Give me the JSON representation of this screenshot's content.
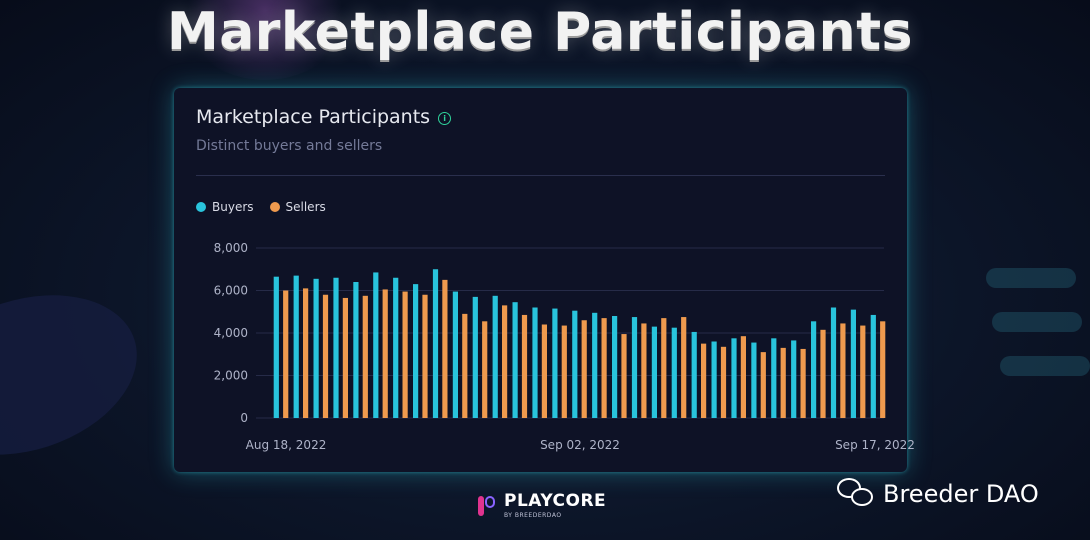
{
  "page": {
    "headline": "Marketplace Participants"
  },
  "card": {
    "title": "Marketplace Participants",
    "subtitle": "Distinct buyers and sellers",
    "info_icon": "info-icon",
    "info_glyph": "i"
  },
  "colors": {
    "buyers": "#29c4dc",
    "sellers": "#ef9a4e",
    "gridline": "#262b48",
    "axis_text": "#aeb3c8",
    "card_glow": "#32c8d7"
  },
  "chart_data": {
    "type": "bar",
    "series": [
      {
        "name": "Buyers",
        "values": [
          6650,
          6700,
          6550,
          6600,
          6400,
          6850,
          6600,
          6300,
          7000,
          5950,
          5700,
          5750,
          5450,
          5200,
          5150,
          5050,
          4950,
          4800,
          4750,
          4300,
          4250,
          4050,
          3600,
          3750,
          3550,
          3750,
          3650,
          4550,
          5200,
          5100,
          4850
        ]
      },
      {
        "name": "Sellers",
        "values": [
          6000,
          6100,
          5800,
          5650,
          5750,
          6050,
          5950,
          5800,
          6500,
          4900,
          4550,
          5300,
          4850,
          4400,
          4350,
          4600,
          4700,
          3950,
          4450,
          4700,
          4750,
          3500,
          3350,
          3850,
          3100,
          3300,
          3250,
          4150,
          4450,
          4350,
          4550
        ]
      }
    ],
    "x_start": "2022-08-18",
    "x_ticks": [
      "Aug 18, 2022",
      "Sep 02, 2022",
      "Sep 17, 2022"
    ],
    "y_ticks": [
      "0",
      "2,000",
      "4,000",
      "6,000",
      "8,000"
    ],
    "ylim": [
      0,
      8000
    ],
    "grid": true,
    "legend_position": "top-left"
  },
  "footer": {
    "brand": "PLAYCORE",
    "brand_sub": "BY BREEDERDAO",
    "wechat_label": "Breeder DAO",
    "wechat_icon": "wechat-icon"
  }
}
